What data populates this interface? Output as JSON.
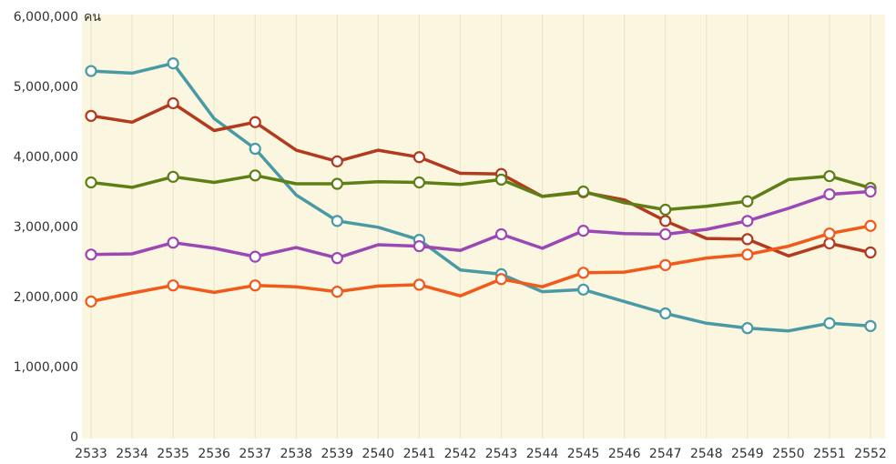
{
  "chart_data": {
    "type": "line",
    "title": "",
    "xlabel": "",
    "ylabel": "",
    "y_unit": "คน",
    "x": [
      "2533",
      "2534",
      "2535",
      "2536",
      "2537",
      "2538",
      "2539",
      "2540",
      "2541",
      "2542",
      "2543",
      "2544",
      "2545",
      "2546",
      "2547",
      "2548",
      "2549",
      "2550",
      "2551",
      "2552"
    ],
    "ylim": [
      0,
      6000000
    ],
    "yticks": [
      0,
      1000000,
      2000000,
      3000000,
      4000000,
      5000000,
      6000000
    ],
    "ytick_labels": [
      "0",
      "1,000,000",
      "2,000,000",
      "3,000,000",
      "4,000,000",
      "5,000,000",
      "6,000,000"
    ],
    "grid": "vertical",
    "series": [
      {
        "color": "#4a9aa6",
        "values": [
          5220000,
          5190000,
          5330000,
          4540000,
          4110000,
          3450000,
          3080000,
          2990000,
          2810000,
          2380000,
          2320000,
          2070000,
          2100000,
          1930000,
          1760000,
          1620000,
          1550000,
          1510000,
          1620000,
          1580000
        ],
        "markers": [
          0,
          2,
          4,
          6,
          8,
          10,
          12,
          14,
          16,
          18,
          19
        ]
      },
      {
        "color": "#b23a1e",
        "values": [
          4580000,
          4490000,
          4760000,
          4370000,
          4490000,
          4090000,
          3930000,
          4090000,
          3990000,
          3760000,
          3750000,
          3430000,
          3490000,
          3380000,
          3080000,
          2830000,
          2820000,
          2580000,
          2760000,
          2630000
        ],
        "markers": [
          0,
          2,
          4,
          6,
          8,
          10,
          12,
          14,
          16,
          18,
          19
        ]
      },
      {
        "color": "#5e7f16",
        "values": [
          3630000,
          3560000,
          3710000,
          3630000,
          3730000,
          3610000,
          3610000,
          3640000,
          3630000,
          3600000,
          3670000,
          3430000,
          3500000,
          3340000,
          3240000,
          3290000,
          3360000,
          3670000,
          3720000,
          3550000
        ],
        "markers": [
          0,
          2,
          4,
          6,
          8,
          10,
          12,
          14,
          16,
          18,
          19
        ]
      },
      {
        "color": "#9b48b5",
        "values": [
          2600000,
          2610000,
          2770000,
          2690000,
          2570000,
          2700000,
          2550000,
          2740000,
          2720000,
          2660000,
          2890000,
          2690000,
          2940000,
          2900000,
          2890000,
          2960000,
          3080000,
          3260000,
          3460000,
          3500000
        ],
        "markers": [
          0,
          2,
          4,
          6,
          8,
          10,
          12,
          14,
          16,
          18,
          19
        ]
      },
      {
        "color": "#f05a1a",
        "values": [
          1930000,
          2050000,
          2160000,
          2060000,
          2160000,
          2140000,
          2070000,
          2150000,
          2170000,
          2010000,
          2250000,
          2140000,
          2340000,
          2350000,
          2450000,
          2550000,
          2600000,
          2720000,
          2900000,
          3010000
        ],
        "markers": [
          0,
          2,
          4,
          6,
          8,
          10,
          12,
          14,
          16,
          18,
          19
        ]
      }
    ]
  },
  "colors": {
    "plot_background": "#fbf6df",
    "gridline": "#e9e2c6",
    "axis_text": "#333333",
    "marker_fill": "#ffffff"
  }
}
